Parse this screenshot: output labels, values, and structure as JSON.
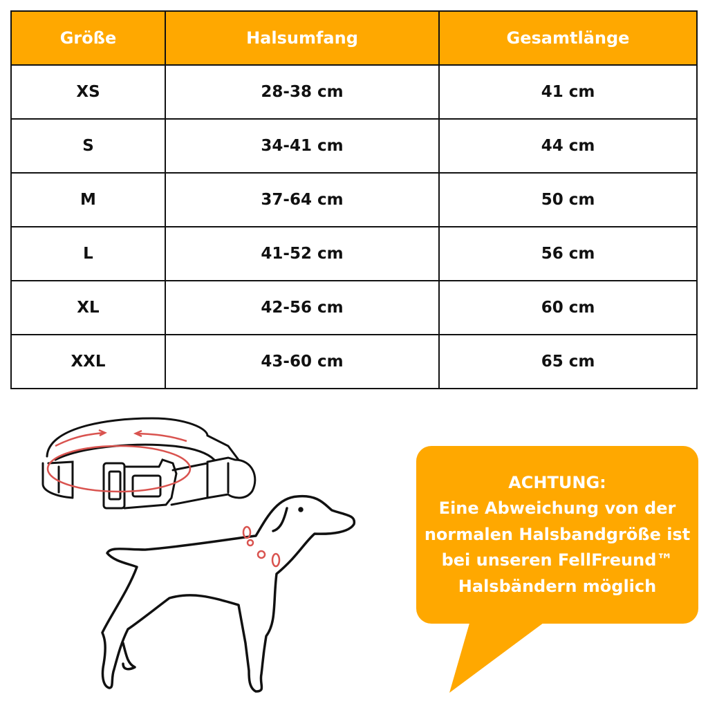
{
  "table": {
    "headers": [
      "Größe",
      "Halsumfang",
      "Gesamtlänge"
    ],
    "rows": [
      [
        "XS",
        "28-38 cm",
        "41 cm"
      ],
      [
        "S",
        "34-41 cm",
        "44 cm"
      ],
      [
        "M",
        "37-64 cm",
        "50 cm"
      ],
      [
        "L",
        "41-52 cm",
        "56 cm"
      ],
      [
        "XL",
        "42-56 cm",
        "60 cm"
      ],
      [
        "XXL",
        "43-60 cm",
        "65 cm"
      ]
    ]
  },
  "notice": {
    "lines": [
      "ACHTUNG:",
      "Eine Abweichung von der",
      "normalen Halsbandgröße ist",
      "bei unseren FellFreund™",
      "Halsbändern möglich"
    ]
  },
  "colors": {
    "accent": "#FFA800",
    "measure": "#D9534F"
  },
  "icons": [
    "collar-illustration",
    "dog-illustration"
  ]
}
